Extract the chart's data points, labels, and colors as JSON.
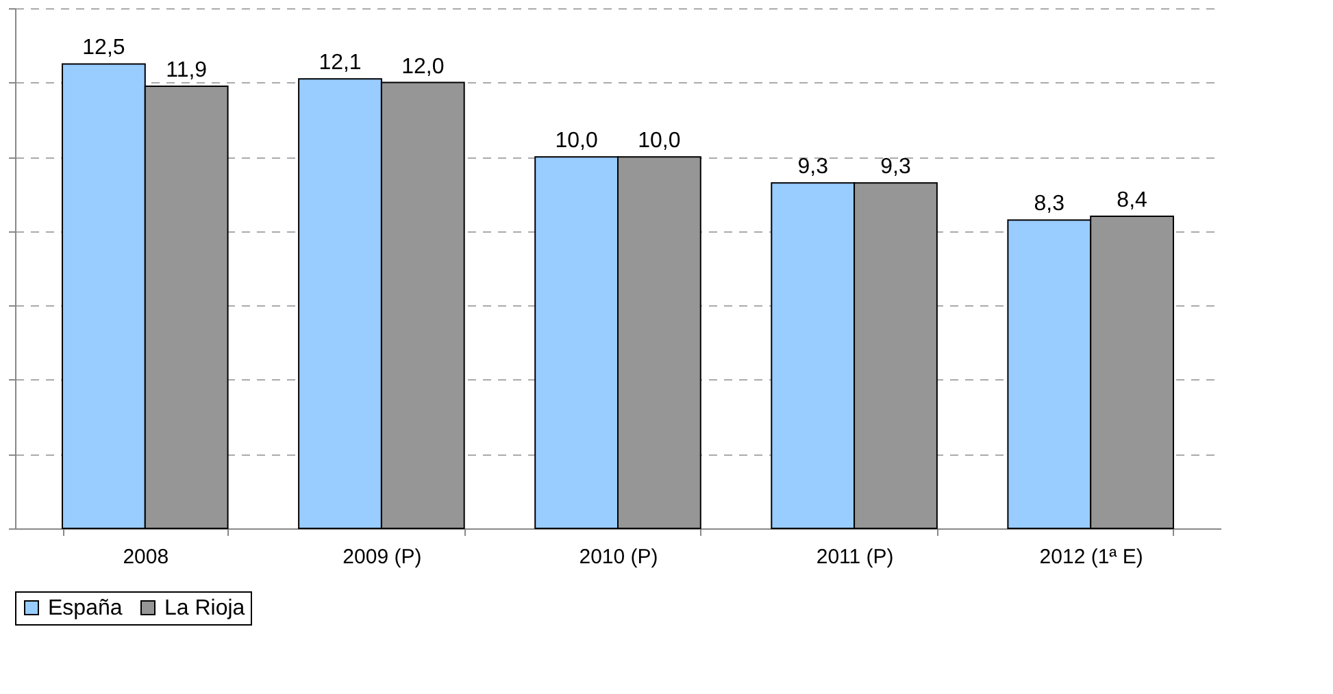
{
  "chart_data": {
    "type": "bar",
    "categories": [
      "2008",
      "2009 (P)",
      "2010 (P)",
      "2011 (P)",
      "2012 (1ª E)"
    ],
    "series": [
      {
        "name": "España",
        "color": "#99ccff",
        "values": [
          12.5,
          12.1,
          10.0,
          9.3,
          8.3
        ],
        "value_labels": [
          "12,5",
          "12,1",
          "10,0",
          "9,3",
          "8,3"
        ]
      },
      {
        "name": "La Rioja",
        "color": "#969696",
        "values": [
          11.9,
          12.0,
          10.0,
          9.3,
          8.4
        ],
        "value_labels": [
          "11,9",
          "12,0",
          "10,0",
          "9,3",
          "8,4"
        ]
      }
    ],
    "ylim": [
      0,
      14
    ],
    "yticks": [
      {
        "value": 0,
        "label": null
      },
      {
        "value": 2,
        "label": null
      },
      {
        "value": 4,
        "label": null
      },
      {
        "value": 6,
        "label": null
      },
      {
        "value": 8,
        "label": null
      },
      {
        "value": 10,
        "label": null
      },
      {
        "value": 12,
        "label": null
      },
      {
        "value": 14,
        "label": null
      }
    ],
    "tick_labels": "x",
    "grid": "y",
    "legend": "bottom"
  }
}
